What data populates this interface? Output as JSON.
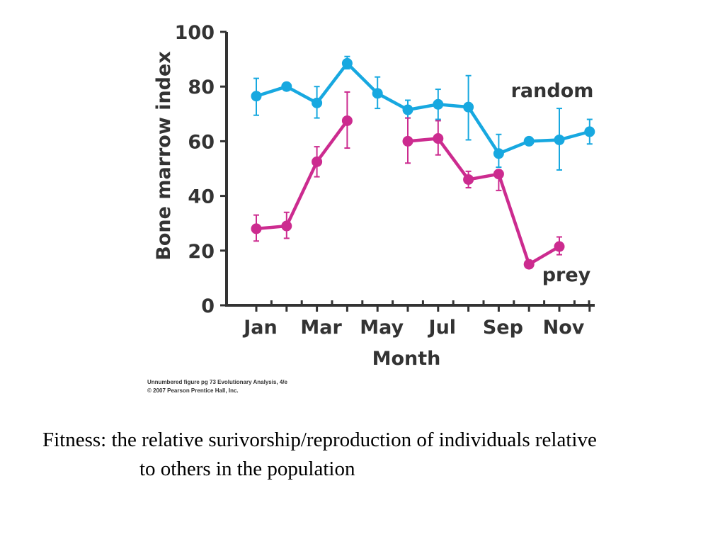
{
  "chart_data": {
    "type": "line",
    "xlabel": "Month",
    "ylabel": "Bone marrow index",
    "ylim": [
      0,
      100
    ],
    "yticks": [
      0,
      20,
      40,
      60,
      80,
      100
    ],
    "grid": false,
    "x_positions": 12,
    "xtick_labels": [
      "Jan",
      "Mar",
      "May",
      "Jul",
      "Sep",
      "Nov"
    ],
    "series": [
      {
        "name": "random",
        "color": "#17a8e0",
        "points": [
          {
            "x": 1,
            "y": 76.5,
            "err": [
              69.5,
              83
            ]
          },
          {
            "x": 2,
            "y": 80,
            "err": null
          },
          {
            "x": 3,
            "y": 74,
            "err": [
              68.5,
              80
            ]
          },
          {
            "x": 4,
            "y": 88.5,
            "err": [
              86.5,
              91
            ]
          },
          {
            "x": 5,
            "y": 77.5,
            "err": [
              72,
              83.5
            ]
          },
          {
            "x": 6,
            "y": 71.5,
            "err": [
              68.5,
              75
            ]
          },
          {
            "x": 7,
            "y": 73.5,
            "err": [
              68,
              79
            ]
          },
          {
            "x": 8,
            "y": 72.5,
            "err": [
              60.5,
              84
            ]
          },
          {
            "x": 9,
            "y": 55.5,
            "err": [
              50.5,
              62.5
            ]
          },
          {
            "x": 10,
            "y": 60,
            "err": null
          },
          {
            "x": 11,
            "y": 60.5,
            "err": [
              49.5,
              72
            ]
          },
          {
            "x": 12,
            "y": 63.5,
            "err": [
              59,
              68
            ]
          }
        ]
      },
      {
        "name": "prey",
        "color": "#cc2b8f",
        "points": [
          {
            "x": 1,
            "y": 28,
            "err": [
              23.5,
              33
            ]
          },
          {
            "x": 2,
            "y": 29,
            "err": [
              24.5,
              34
            ]
          },
          {
            "x": 3,
            "y": 52.5,
            "err": [
              47,
              58
            ]
          },
          {
            "x": 4,
            "y": 67.5,
            "err": [
              57.5,
              78
            ]
          },
          {
            "x": 6,
            "y": 60,
            "err": [
              52,
              68.5
            ]
          },
          {
            "x": 7,
            "y": 61,
            "err": [
              55,
              67.5
            ]
          },
          {
            "x": 8,
            "y": 46,
            "err": [
              43,
              49
            ]
          },
          {
            "x": 9,
            "y": 48,
            "err": [
              42,
              49.5
            ]
          },
          {
            "x": 10,
            "y": 15,
            "err": null
          },
          {
            "x": 11,
            "y": 21.5,
            "err": [
              18.5,
              25
            ]
          }
        ]
      }
    ]
  },
  "credit": {
    "line1": "Unnumbered figure pg 73  Evolutionary Analysis, 4/e",
    "line2": "© 2007 Pearson Prentice Hall, Inc."
  },
  "caption": {
    "line1": "Fitness: the relative surivorship/reproduction of individuals relative",
    "line2": "to others in the population"
  }
}
